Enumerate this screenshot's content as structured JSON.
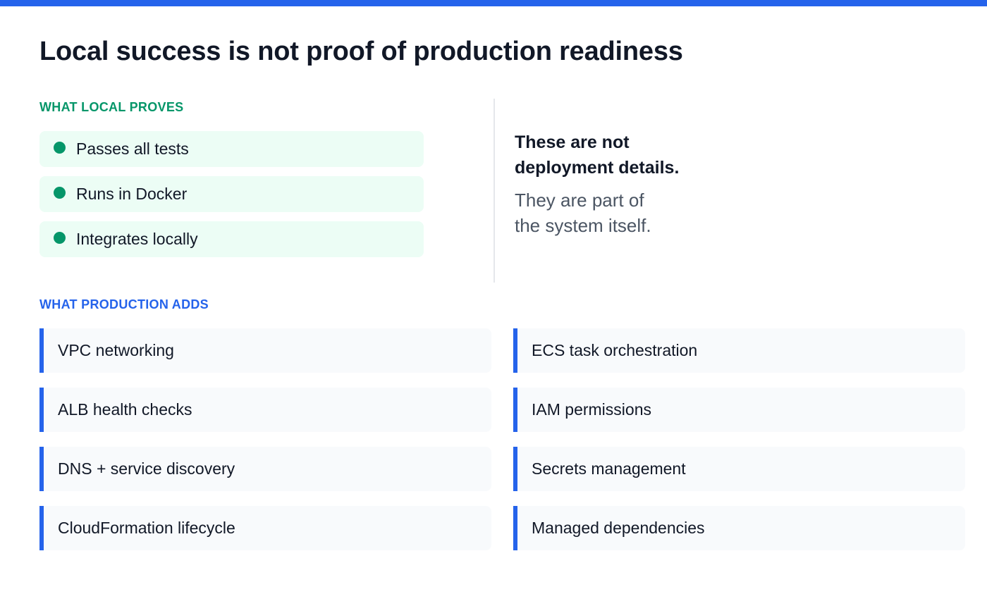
{
  "title": "Local success is not proof of production readiness",
  "local": {
    "label": "WHAT LOCAL PROVES",
    "items": [
      "Passes all tests",
      "Runs in Docker",
      "Integrates locally"
    ]
  },
  "note": {
    "strong_line1": "These are not",
    "strong_line2": "deployment details.",
    "soft_line1": "They are part of",
    "soft_line2": "the system itself."
  },
  "production": {
    "label": "WHAT PRODUCTION ADDS",
    "items": [
      "VPC networking",
      "ECS task orchestration",
      "ALB health checks",
      "IAM permissions",
      "DNS + service discovery",
      "Secrets management",
      "CloudFormation lifecycle",
      "Managed dependencies"
    ]
  },
  "colors": {
    "accent": "#2563eb",
    "success": "#059669",
    "success_bg": "#ecfdf5"
  }
}
